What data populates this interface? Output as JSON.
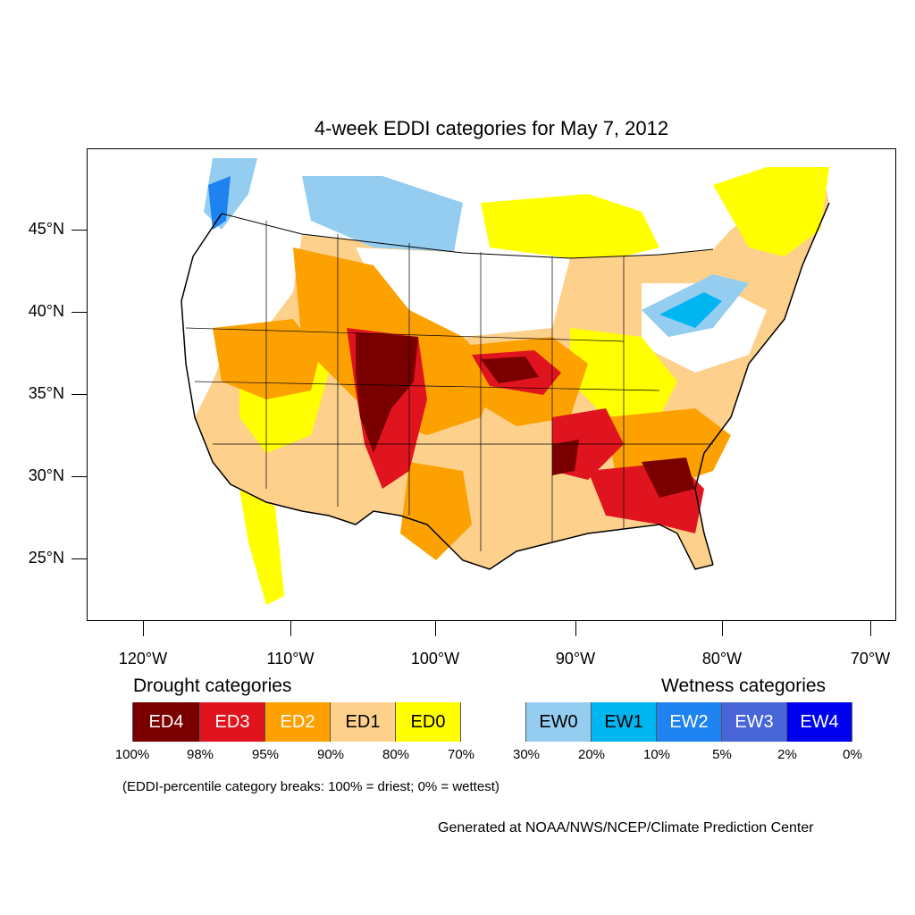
{
  "title": "4-week EDDI categories for May 7, 2012",
  "axes": {
    "lat_labels": [
      "45°N",
      "40°N",
      "35°N",
      "30°N",
      "25°N"
    ],
    "lon_labels": [
      "120°W",
      "110°W",
      "100°W",
      "90°W",
      "80°W",
      "70°W"
    ]
  },
  "legend": {
    "drought_heading": "Drought categories",
    "wetness_heading": "Wetness categories",
    "categories": [
      {
        "label": "ED4",
        "color": "#7a0000",
        "text_color": "#ffffff"
      },
      {
        "label": "ED3",
        "color": "#e0141e",
        "text_color": "#ffffff"
      },
      {
        "label": "ED2",
        "color": "#fca100",
        "text_color": "#ffffff"
      },
      {
        "label": "ED1",
        "color": "#fdd08c",
        "text_color": "#000000"
      },
      {
        "label": "ED0",
        "color": "#ffff00",
        "text_color": "#000000"
      },
      {
        "label": "",
        "color": "#ffffff",
        "text_color": "#000000"
      },
      {
        "label": "EW0",
        "color": "#94cdf0",
        "text_color": "#000000"
      },
      {
        "label": "EW1",
        "color": "#00b6f0",
        "text_color": "#000000"
      },
      {
        "label": "EW2",
        "color": "#1e82f0",
        "text_color": "#ffffff"
      },
      {
        "label": "EW3",
        "color": "#4866d8",
        "text_color": "#ffffff"
      },
      {
        "label": "EW4",
        "color": "#0000f0",
        "text_color": "#ffffff"
      }
    ],
    "breaks": [
      "100%",
      "98%",
      "95%",
      "90%",
      "80%",
      "70%",
      "30%",
      "20%",
      "10%",
      "5%",
      "2%",
      "0%"
    ]
  },
  "note": "(EDDI-percentile category breaks: 100% = driest; 0% = wettest)",
  "credit": "Generated at NOAA/NWS/NCEP/Climate Prediction Center"
}
